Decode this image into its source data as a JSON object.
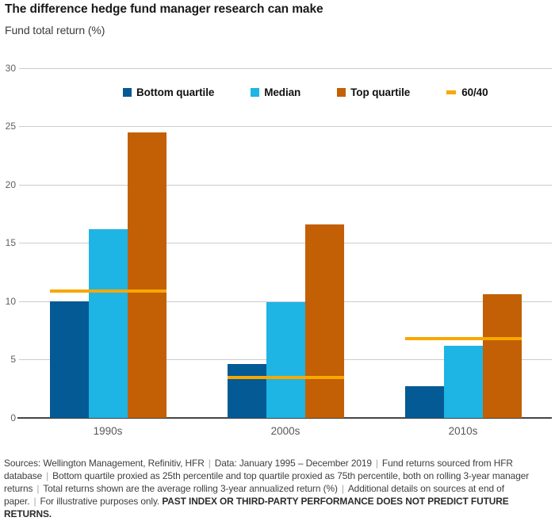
{
  "header": {
    "title": "The difference hedge fund manager research can make",
    "subtitle": "Fund total return (%)"
  },
  "chart_data": {
    "type": "bar",
    "title": "The difference hedge fund manager research can make",
    "ylabel": "Fund total return (%)",
    "categories": [
      "1990s",
      "2000s",
      "2010s"
    ],
    "series": [
      {
        "name": "Bottom quartile",
        "color": "#045A94",
        "values": [
          10.0,
          4.6,
          2.7
        ]
      },
      {
        "name": "Median",
        "color": "#1EB4E4",
        "values": [
          16.2,
          9.9,
          6.2
        ]
      },
      {
        "name": "Top quartile",
        "color": "#C35F04",
        "values": [
          24.5,
          16.6,
          10.6
        ]
      }
    ],
    "overlay_line": {
      "name": "60/40",
      "color": "#F8A800",
      "values": [
        10.9,
        3.5,
        6.8
      ]
    },
    "ylim": [
      0,
      30
    ],
    "yticks": [
      0,
      5,
      10,
      15,
      20,
      25,
      30
    ],
    "grid": true,
    "legend_position": "top"
  },
  "footer": {
    "separator": "|",
    "segments": [
      "Sources: Wellington Management, Refinitiv, HFR",
      "Data: January 1995 – December 2019",
      "Fund returns sourced from HFR database",
      "Bottom quartile proxied as 25th percentile and top quartile proxied as 75th percentile, both on rolling 3-year manager returns",
      "Total returns shown are the average rolling 3-year annualized return (%)",
      "Additional details on sources at end of paper.",
      "For illustrative purposes only."
    ],
    "bold_text": "PAST INDEX OR THIRD-PARTY PERFORMANCE DOES NOT PREDICT FUTURE RETURNS."
  }
}
